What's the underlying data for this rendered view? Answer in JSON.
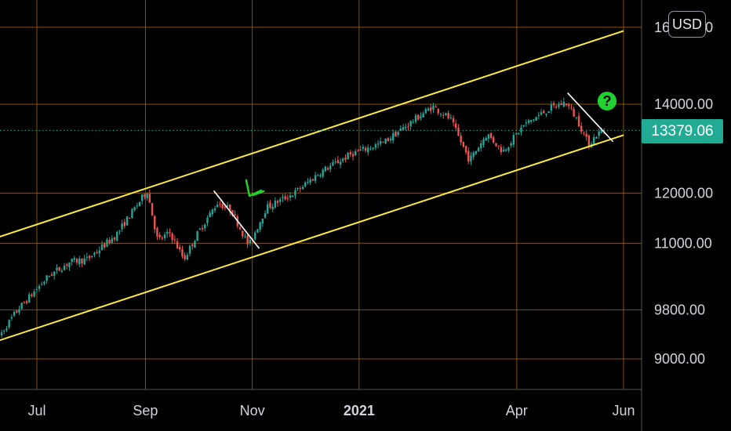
{
  "header": {
    "currency_label": "USD"
  },
  "price_badge": {
    "value": "13379.06",
    "color": "#22ab94"
  },
  "annotation": {
    "question_mark": "?",
    "check_mark_color": "#1fd22d"
  },
  "colors": {
    "background": "#000000",
    "grid": "#a86f0a",
    "channel": "#ffeb3b",
    "up": "#26a69a",
    "down": "#ef5350",
    "trendline": "#ffffff",
    "last_price_line": "#22ab94"
  },
  "chart_data": {
    "type": "candlestick",
    "title": "",
    "y_scale": "log",
    "y_ticks": [
      {
        "value": 16000,
        "label": "16000.00"
      },
      {
        "value": 14000,
        "label": "14000.00"
      },
      {
        "value": 12000,
        "label": "12000.00"
      },
      {
        "value": 11000,
        "label": "11000.00"
      },
      {
        "value": 9800,
        "label": "9800.00"
      },
      {
        "value": 9000,
        "label": "9000.00"
      }
    ],
    "x_ticks": [
      {
        "date": "2020-07-01",
        "label": "Jul",
        "bold": false
      },
      {
        "date": "2020-09-01",
        "label": "Sep",
        "bold": false
      },
      {
        "date": "2020-11-01",
        "label": "Nov",
        "bold": false
      },
      {
        "date": "2021-01-01",
        "label": "2021",
        "bold": true
      },
      {
        "date": "2021-04-01",
        "label": "Apr",
        "bold": false
      },
      {
        "date": "2021-06-01",
        "label": "Jun",
        "bold": false
      }
    ],
    "last_price": 13379.06,
    "price_path": [
      [
        "2020-06-08",
        9300
      ],
      [
        "2020-06-20",
        9800
      ],
      [
        "2020-07-08",
        10400
      ],
      [
        "2020-07-20",
        10650
      ],
      [
        "2020-07-30",
        10700
      ],
      [
        "2020-08-15",
        11150
      ],
      [
        "2020-09-02",
        12050
      ],
      [
        "2020-09-08",
        11050
      ],
      [
        "2020-09-15",
        11200
      ],
      [
        "2020-09-23",
        10700
      ],
      [
        "2020-10-01",
        11200
      ],
      [
        "2020-10-12",
        11800
      ],
      [
        "2020-10-20",
        11650
      ],
      [
        "2020-10-30",
        10950
      ],
      [
        "2020-11-09",
        11700
      ],
      [
        "2020-11-25",
        12000
      ],
      [
        "2020-12-10",
        12450
      ],
      [
        "2020-12-28",
        12850
      ],
      [
        "2021-01-15",
        13100
      ],
      [
        "2021-02-12",
        13950
      ],
      [
        "2021-02-22",
        13650
      ],
      [
        "2021-03-05",
        12700
      ],
      [
        "2021-03-15",
        13300
      ],
      [
        "2021-03-24",
        12900
      ],
      [
        "2021-04-05",
        13500
      ],
      [
        "2021-04-20",
        13900
      ],
      [
        "2021-04-29",
        14050
      ],
      [
        "2021-05-06",
        13600
      ],
      [
        "2021-05-12",
        13050
      ],
      [
        "2021-05-17",
        13300
      ],
      [
        "2021-05-21",
        13379.06
      ]
    ],
    "channel": {
      "upper": [
        [
          "2020-05-25",
          10950
        ],
        [
          "2021-06-01",
          15900
        ]
      ],
      "lower": [
        [
          "2020-05-25",
          9150
        ],
        [
          "2021-06-01",
          13270
        ]
      ]
    },
    "trendlines": [
      {
        "from": [
          "2020-10-10",
          12050
        ],
        "to": [
          "2020-11-05",
          10900
        ]
      },
      {
        "from": [
          "2021-04-30",
          14280
        ],
        "to": [
          "2021-05-26",
          13120
        ]
      }
    ]
  }
}
